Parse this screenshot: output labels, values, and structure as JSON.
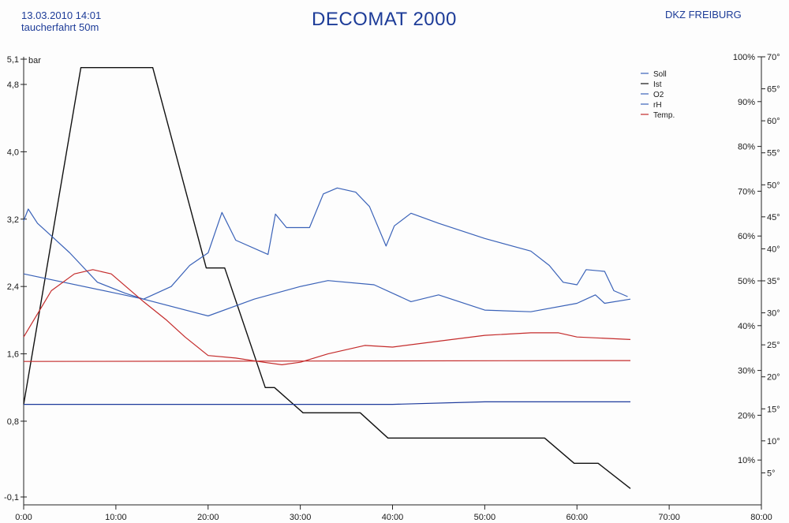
{
  "header": {
    "date": "13.03.2010  14:01",
    "subtitle": "taucherfahrt 50m",
    "title": "DECOMAT 2000",
    "org": "DKZ FREIBURG"
  },
  "chart_data": {
    "type": "line",
    "xlim": [
      0,
      80
    ],
    "ylim": [
      -0.1,
      5.1
    ],
    "y_unit": "bar",
    "x_ticks": [
      "0:00",
      "10:00",
      "20:00",
      "30:00",
      "40:00",
      "50:00",
      "60:00",
      "70:00",
      "80:00"
    ],
    "y_ticks": [
      "5,1",
      "4,8",
      "4,0",
      "3,2",
      "2,4",
      "1,6",
      "0,8",
      "-0,1"
    ],
    "pct_ticks": [
      "100%",
      "90%",
      "80%",
      "70%",
      "60%",
      "50%",
      "40%",
      "30%",
      "20%",
      "10%"
    ],
    "temp_ticks": [
      "70°",
      "65°",
      "60°",
      "55°",
      "50°",
      "45°",
      "40°",
      "35°",
      "30°",
      "25°",
      "20°",
      "15°",
      "10°",
      "5°"
    ],
    "colors": {
      "blue": "#3a62b8",
      "black": "#111111",
      "red": "#c42b2b",
      "deepblue": "#1d3a9c"
    },
    "legend": [
      "Soll",
      "Ist",
      "O2",
      "rH",
      "Temp."
    ],
    "series": [
      {
        "name": "Ist",
        "color": "black",
        "x": [
          0,
          6.2,
          14,
          19.8,
          21.8,
          26.2,
          27.2,
          30.3,
          36.5,
          39.5,
          56.5,
          59.7,
          62.3,
          65.8
        ],
        "y": [
          1.0,
          5.0,
          5.0,
          2.62,
          2.62,
          1.2,
          1.2,
          0.9,
          0.9,
          0.6,
          0.6,
          0.3,
          0.3,
          0.0
        ]
      },
      {
        "name": "Soll",
        "color": "deepblue",
        "x": [
          0,
          40,
          50,
          65.8
        ],
        "y": [
          1.0,
          1.0,
          1.03,
          1.03
        ]
      },
      {
        "name": "O2",
        "color": "blue",
        "x": [
          0,
          10,
          13,
          20,
          25,
          30,
          33,
          38,
          42,
          45,
          50,
          55,
          60,
          62,
          63,
          65.8
        ],
        "y": [
          2.55,
          2.32,
          2.25,
          2.05,
          2.25,
          2.4,
          2.47,
          2.42,
          2.22,
          2.3,
          2.12,
          2.1,
          2.2,
          2.3,
          2.2,
          2.25
        ]
      },
      {
        "name": "rH",
        "color": "blue",
        "x": [
          0,
          0.5,
          1.5,
          3,
          5,
          8,
          11,
          13,
          16,
          18,
          20,
          21.5,
          23,
          26.5,
          27.3,
          28.5,
          31,
          32.5,
          34,
          36,
          37.5,
          39.3,
          40.2,
          42,
          45,
          50,
          55,
          57,
          58.5,
          60,
          61,
          63,
          64,
          65.5
        ],
        "y": [
          3.18,
          3.32,
          3.15,
          3.0,
          2.8,
          2.45,
          2.32,
          2.25,
          2.4,
          2.65,
          2.8,
          3.28,
          2.95,
          2.78,
          3.26,
          3.1,
          3.1,
          3.5,
          3.57,
          3.52,
          3.35,
          2.88,
          3.12,
          3.27,
          3.15,
          2.97,
          2.82,
          2.65,
          2.45,
          2.42,
          2.6,
          2.58,
          2.35,
          2.28
        ]
      },
      {
        "name": "Temp.",
        "color": "red",
        "x": [
          0,
          3,
          5.5,
          7.5,
          9.5,
          13,
          15.5,
          17.5,
          20,
          23,
          26,
          28,
          30,
          33,
          37,
          40,
          45,
          50,
          55,
          58,
          60,
          65.8
        ],
        "y": [
          1.8,
          2.35,
          2.55,
          2.6,
          2.55,
          2.22,
          2.0,
          1.8,
          1.58,
          1.55,
          1.5,
          1.47,
          1.5,
          1.6,
          1.7,
          1.68,
          1.75,
          1.82,
          1.85,
          1.85,
          1.8,
          1.77
        ]
      },
      {
        "name": "",
        "color": "red",
        "x": [
          0,
          65.8
        ],
        "y": [
          1.51,
          1.52
        ]
      }
    ]
  }
}
